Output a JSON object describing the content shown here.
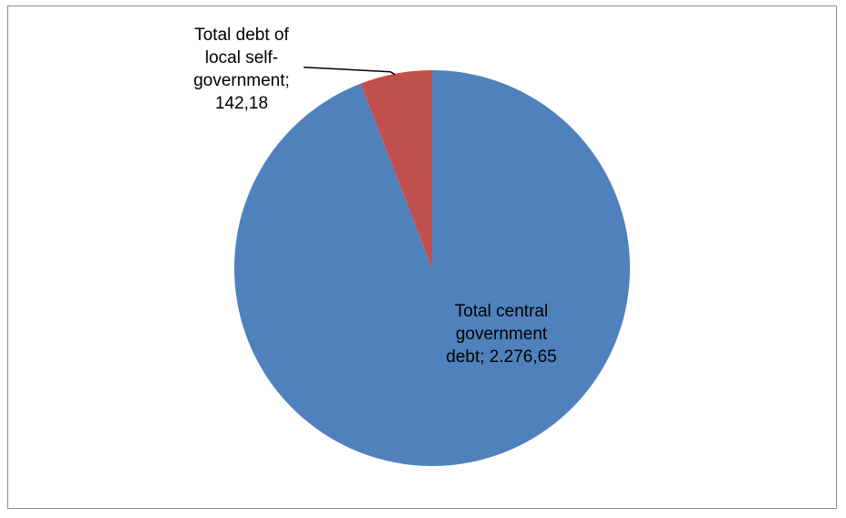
{
  "chart_data": {
    "type": "pie",
    "title": "",
    "slices": [
      {
        "label_lines": [
          "Total central",
          "government",
          "debt; 2.276,65"
        ],
        "category": "Total central government debt",
        "value": 2276.65,
        "value_text": "2.276,65",
        "color": "#4f81bd"
      },
      {
        "label_lines": [
          "Total debt of",
          "local self-",
          "government;",
          "142,18"
        ],
        "category": "Total debt of local self-government",
        "value": 142.18,
        "value_text": "142,18",
        "color": "#c0504d"
      }
    ],
    "start_angle_deg": 0,
    "direction": "clockwise",
    "legend": "none"
  }
}
